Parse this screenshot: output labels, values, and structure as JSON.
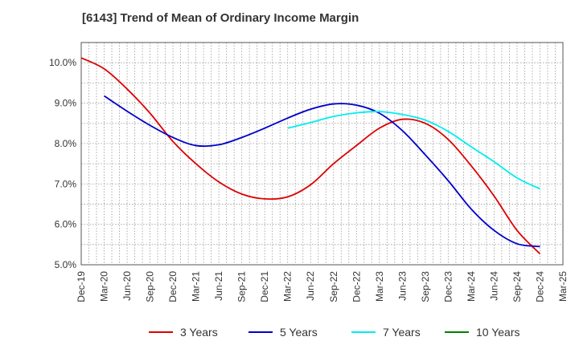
{
  "chart_data": {
    "type": "line",
    "title": "[6143]  Trend of Mean of Ordinary Income Margin",
    "xlabel": "",
    "ylabel": "",
    "x": [
      "Dec-19",
      "Mar-20",
      "Jun-20",
      "Sep-20",
      "Dec-20",
      "Mar-21",
      "Jun-21",
      "Sep-21",
      "Dec-21",
      "Mar-22",
      "Jun-22",
      "Sep-22",
      "Dec-22",
      "Mar-23",
      "Jun-23",
      "Sep-23",
      "Dec-23",
      "Mar-24",
      "Jun-24",
      "Sep-24",
      "Dec-24",
      "Mar-25"
    ],
    "ylim": [
      5.0,
      10.5
    ],
    "yticks": [
      5.0,
      6.0,
      7.0,
      8.0,
      9.0,
      10.0
    ],
    "ytick_labels": [
      "5.0%",
      "6.0%",
      "7.0%",
      "8.0%",
      "9.0%",
      "10.0%"
    ],
    "grid": true,
    "legend_position": "bottom",
    "series": [
      {
        "name": "3 Years",
        "color": "#dd0000",
        "values": [
          10.12,
          9.85,
          9.35,
          8.75,
          8.05,
          7.5,
          7.05,
          6.75,
          6.63,
          6.68,
          6.98,
          7.5,
          7.95,
          8.38,
          8.6,
          8.5,
          8.1,
          7.45,
          6.7,
          5.85,
          5.27,
          null
        ]
      },
      {
        "name": "5 Years",
        "color": "#0000cc",
        "values": [
          null,
          9.18,
          8.8,
          8.45,
          8.15,
          7.95,
          7.97,
          8.15,
          8.38,
          8.63,
          8.85,
          8.98,
          8.95,
          8.75,
          8.32,
          7.72,
          7.08,
          6.38,
          5.85,
          5.52,
          5.45,
          null
        ]
      },
      {
        "name": "7 Years",
        "color": "#00eeee",
        "values": [
          null,
          null,
          null,
          null,
          null,
          null,
          null,
          null,
          null,
          8.38,
          8.52,
          8.67,
          8.76,
          8.79,
          8.72,
          8.58,
          8.3,
          7.92,
          7.55,
          7.15,
          6.88,
          null
        ]
      },
      {
        "name": "10 Years",
        "color": "#008000",
        "values": [
          null,
          null,
          null,
          null,
          null,
          null,
          null,
          null,
          null,
          null,
          null,
          null,
          null,
          null,
          null,
          null,
          null,
          null,
          null,
          null,
          null,
          null
        ]
      }
    ]
  }
}
